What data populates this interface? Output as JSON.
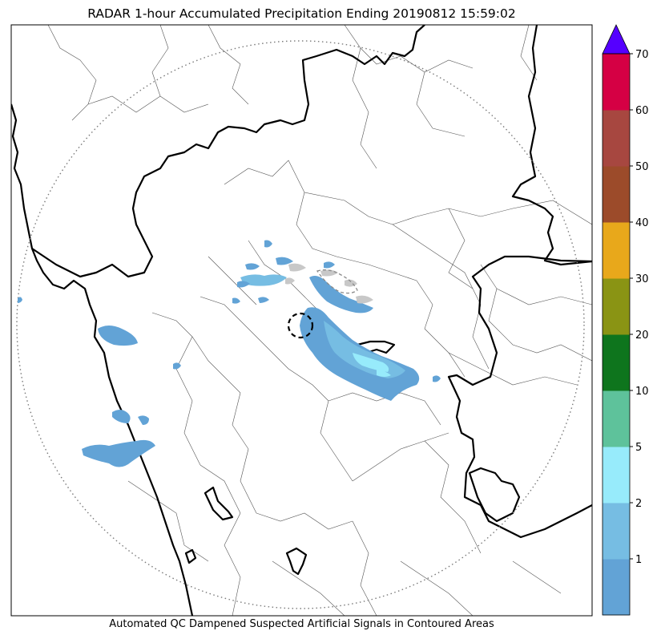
{
  "title": "RADAR 1-hour Accumulated Precipitation Ending 20190812 15:59:02",
  "footnote": "Automated QC Dampened Suspected Artificial Signals in Contoured Areas",
  "colorbar": {
    "levels": [
      {
        "label": "",
        "color": "#62a3d6"
      },
      {
        "label": "1",
        "color": "#76bde3"
      },
      {
        "label": "2",
        "color": "#97ebfb"
      },
      {
        "label": "5",
        "color": "#5ec29b"
      },
      {
        "label": "10",
        "color": "#0e751d"
      },
      {
        "label": "20",
        "color": "#8a9414"
      },
      {
        "label": "30",
        "color": "#e8a81b"
      },
      {
        "label": "40",
        "color": "#9c4b2a"
      },
      {
        "label": "50",
        "color": "#a74740"
      },
      {
        "label": "60",
        "color": "#d50044"
      },
      {
        "label": "70",
        "color": ""
      }
    ],
    "extend_color": "#5500ff",
    "extend": "max"
  },
  "map": {
    "range_ring": "dotted",
    "radar_site": "dashed-circle",
    "precip_colors": {
      "light": "#62a3d6",
      "moderate": "#76bde3",
      "heavy": "#97ebfb",
      "flagged": "#c8c8c8"
    }
  }
}
